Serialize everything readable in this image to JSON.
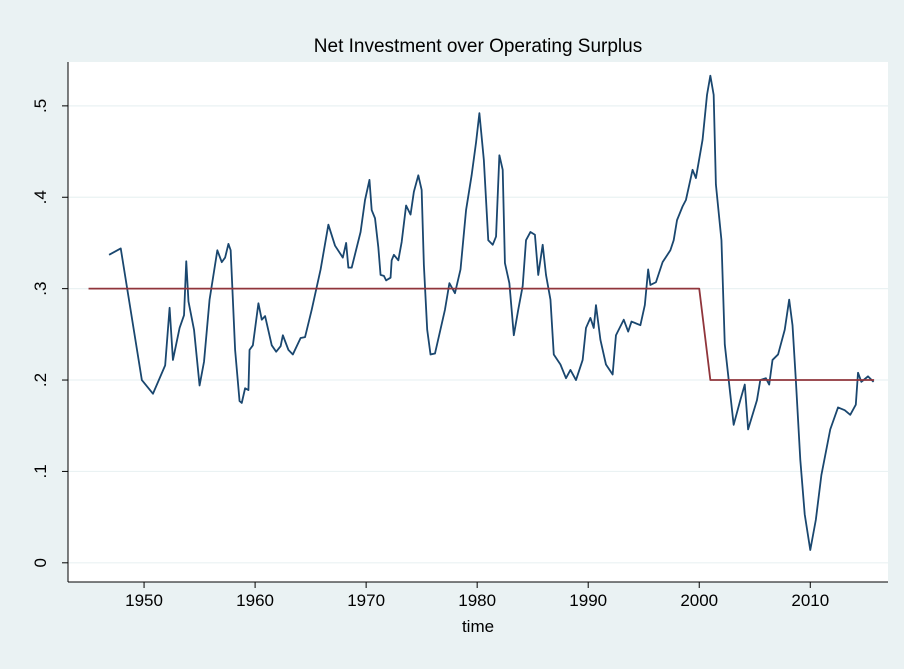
{
  "chart_data": {
    "type": "line",
    "title": "Net Investment over Operating Surplus",
    "x_label": "time",
    "xlim": [
      1943.15,
      2017.0
    ],
    "ylim": [
      -0.021,
      0.548
    ],
    "xticks": [
      1950,
      1960,
      1970,
      1980,
      1990,
      2000,
      2010
    ],
    "yticks": [
      {
        "value": 0,
        "label": "0"
      },
      {
        "value": 0.1,
        "label": ".1"
      },
      {
        "value": 0.2,
        "label": ".2"
      },
      {
        "value": 0.3,
        "label": ".3"
      },
      {
        "value": 0.4,
        "label": ".4"
      },
      {
        "value": 0.5,
        "label": ".5"
      }
    ],
    "grid": true,
    "series": [
      {
        "color": "#1a476f",
        "x": [
          1946.85,
          1947.9,
          1949.8,
          1950.8,
          1951.9,
          1952.3,
          1952.6,
          1953.2,
          1953.6,
          1953.8,
          1954.0,
          1954.5,
          1955.0,
          1955.4,
          1955.9,
          1956.6,
          1957.0,
          1957.3,
          1957.6,
          1957.8,
          1958.2,
          1958.6,
          1958.8,
          1959.1,
          1959.4,
          1959.5,
          1959.8,
          1960.3,
          1960.6,
          1960.9,
          1961.5,
          1961.9,
          1962.3,
          1962.5,
          1963.0,
          1963.4,
          1964.1,
          1964.5,
          1965.1,
          1965.9,
          1966.6,
          1967.2,
          1967.9,
          1968.2,
          1968.4,
          1968.7,
          1969.5,
          1969.9,
          1970.3,
          1970.5,
          1970.8,
          1971.1,
          1971.3,
          1971.6,
          1971.8,
          1972.2,
          1972.3,
          1972.5,
          1972.9,
          1973.2,
          1973.6,
          1974.0,
          1974.3,
          1974.7,
          1975.0,
          1975.2,
          1975.5,
          1975.8,
          1976.2,
          1977.1,
          1977.5,
          1978.0,
          1978.5,
          1979.0,
          1979.5,
          1979.9,
          1980.2,
          1980.6,
          1981.0,
          1981.4,
          1981.7,
          1982.0,
          1982.3,
          1982.5,
          1982.9,
          1983.3,
          1983.7,
          1984.1,
          1984.4,
          1984.8,
          1985.2,
          1985.5,
          1985.9,
          1986.2,
          1986.6,
          1986.9,
          1987.5,
          1988.0,
          1988.4,
          1988.9,
          1989.5,
          1989.8,
          1990.2,
          1990.5,
          1990.7,
          1991.1,
          1991.6,
          1992.2,
          1992.5,
          1993.2,
          1993.6,
          1993.9,
          1994.7,
          1995.1,
          1995.4,
          1995.6,
          1996.1,
          1996.7,
          1997.4,
          1997.7,
          1998.0,
          1998.5,
          1998.8,
          1999.4,
          1999.7,
          2000.3,
          2000.7,
          2001.0,
          2001.3,
          2001.5,
          2002.0,
          2002.3,
          2003.1,
          2003.7,
          2004.1,
          2004.4,
          2005.2,
          2005.5,
          2006.0,
          2006.3,
          2006.6,
          2007.1,
          2007.7,
          2008.1,
          2008.4,
          2008.7,
          2009.1,
          2009.5,
          2010.0,
          2010.5,
          2011.0,
          2011.8,
          2012.5,
          2013.1,
          2013.6,
          2014.1,
          2014.3,
          2014.6,
          2015.2,
          2015.7
        ],
        "values": [
          0.337,
          0.344,
          0.2,
          0.185,
          0.216,
          0.279,
          0.222,
          0.257,
          0.271,
          0.33,
          0.286,
          0.255,
          0.194,
          0.22,
          0.288,
          0.342,
          0.329,
          0.334,
          0.349,
          0.342,
          0.233,
          0.177,
          0.175,
          0.191,
          0.189,
          0.233,
          0.238,
          0.284,
          0.266,
          0.27,
          0.238,
          0.231,
          0.237,
          0.249,
          0.233,
          0.228,
          0.246,
          0.247,
          0.277,
          0.321,
          0.37,
          0.347,
          0.334,
          0.35,
          0.323,
          0.323,
          0.362,
          0.397,
          0.419,
          0.386,
          0.377,
          0.345,
          0.315,
          0.314,
          0.309,
          0.312,
          0.331,
          0.337,
          0.331,
          0.351,
          0.391,
          0.381,
          0.406,
          0.424,
          0.408,
          0.326,
          0.255,
          0.228,
          0.229,
          0.277,
          0.306,
          0.295,
          0.321,
          0.386,
          0.424,
          0.46,
          0.492,
          0.441,
          0.353,
          0.348,
          0.357,
          0.446,
          0.43,
          0.328,
          0.306,
          0.249,
          0.277,
          0.303,
          0.353,
          0.362,
          0.359,
          0.315,
          0.348,
          0.315,
          0.288,
          0.228,
          0.217,
          0.202,
          0.211,
          0.2,
          0.222,
          0.257,
          0.268,
          0.257,
          0.282,
          0.244,
          0.217,
          0.206,
          0.249,
          0.266,
          0.253,
          0.264,
          0.26,
          0.282,
          0.321,
          0.304,
          0.307,
          0.329,
          0.342,
          0.353,
          0.375,
          0.39,
          0.397,
          0.43,
          0.421,
          0.463,
          0.512,
          0.533,
          0.512,
          0.414,
          0.353,
          0.239,
          0.151,
          0.178,
          0.195,
          0.146,
          0.178,
          0.2,
          0.202,
          0.195,
          0.222,
          0.228,
          0.255,
          0.288,
          0.26,
          0.2,
          0.113,
          0.053,
          0.014,
          0.047,
          0.096,
          0.146,
          0.17,
          0.167,
          0.162,
          0.173,
          0.208,
          0.198,
          0.204,
          0.198
        ]
      },
      {
        "color": "#90353b",
        "x": [
          1945,
          2000,
          2001,
          2015.75
        ],
        "values": [
          0.3,
          0.3,
          0.2,
          0.2
        ]
      }
    ]
  }
}
